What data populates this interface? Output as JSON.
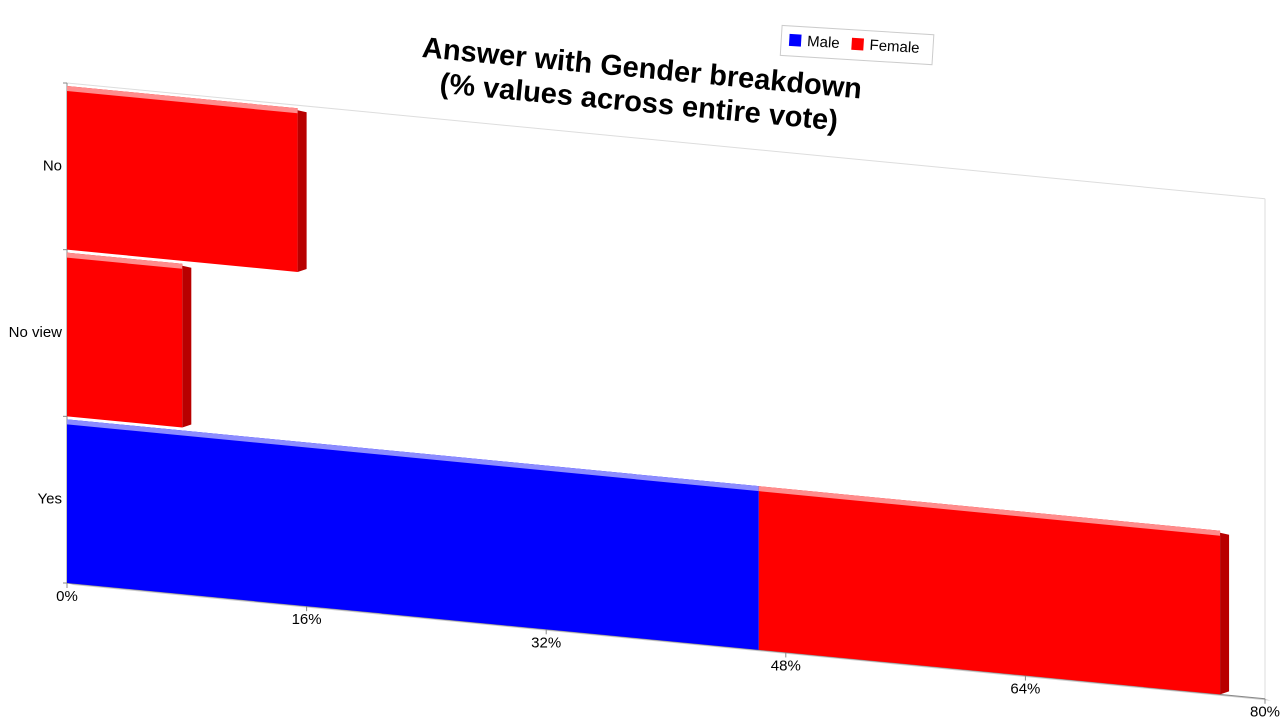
{
  "chart_data": {
    "type": "bar3d",
    "title": [
      "Answer with Gender breakdown",
      "(% values across entire vote)"
    ],
    "categories": [
      "No",
      "No view",
      "Yes"
    ],
    "series": [
      {
        "name": "Male",
        "color": "#0000ff",
        "values": [
          0,
          0,
          46.2
        ]
      },
      {
        "name": "Female",
        "color": "#ff0000",
        "values": [
          15.4,
          7.7,
          30.8
        ]
      }
    ],
    "xlim": [
      0,
      80
    ],
    "xticks": [
      {
        "value": 0,
        "label": "0%"
      },
      {
        "value": 16,
        "label": "16%"
      },
      {
        "value": 32,
        "label": "32%"
      },
      {
        "value": 48,
        "label": "48%"
      },
      {
        "value": 64,
        "label": "64%"
      },
      {
        "value": 80,
        "label": "80%"
      }
    ],
    "stacked": true
  }
}
